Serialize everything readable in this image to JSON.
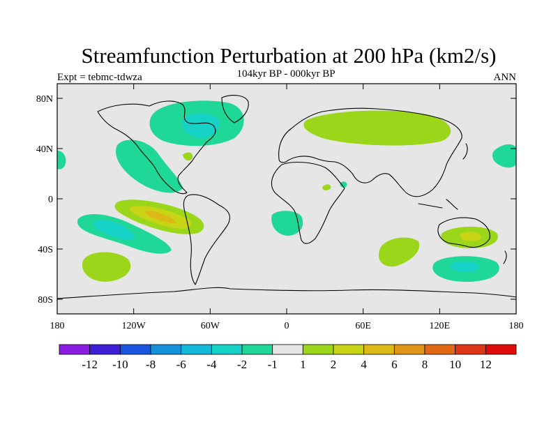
{
  "title": "Streamfunction Perturbation at 200 hPa (km2/s)",
  "left_label": "Expt = tebmc-tdwza",
  "center_label": "104kyr BP - 000kyr BP",
  "right_label": "ANN",
  "axes": {
    "y_ticks": [
      "80N",
      "40N",
      "0",
      "40S",
      "80S"
    ],
    "x_ticks": [
      "180",
      "120W",
      "60W",
      "0",
      "60E",
      "120E",
      "180"
    ]
  },
  "colorbar": {
    "colors": [
      "#8a1de0",
      "#3f1fd6",
      "#1a55dd",
      "#1591db",
      "#14b8d9",
      "#16d2c6",
      "#1fd796",
      "#e6e6e6",
      "#9bd61a",
      "#c8d416",
      "#dcb916",
      "#e09516",
      "#e06916",
      "#dd3616",
      "#e00a0a"
    ],
    "labels": [
      "-12",
      "-10",
      "-8",
      "-6",
      "-4",
      "-2",
      "-1",
      "1",
      "2",
      "4",
      "6",
      "8",
      "10",
      "12"
    ]
  },
  "colors": {
    "background": "#e6e6e6",
    "neg1": "#1fd796",
    "neg2": "#16d2c6",
    "neg3": "#14b8d9",
    "pos1": "#9bd61a",
    "pos2": "#c8d416",
    "pos3": "#dcb916"
  }
}
